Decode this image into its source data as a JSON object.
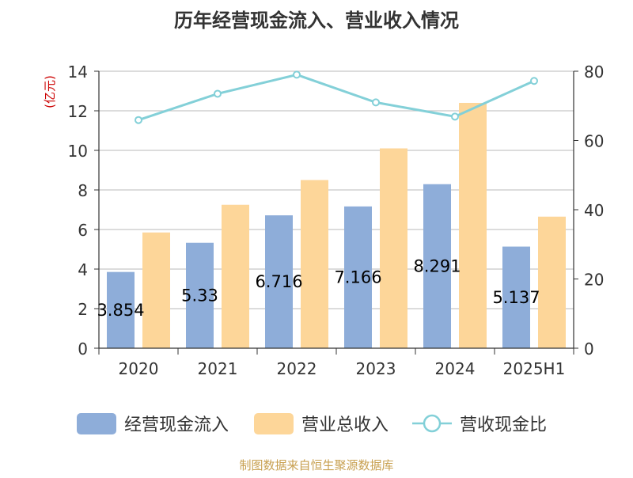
{
  "chart_data": {
    "type": "bar",
    "title": "历年经营现金流入、营业收入情况",
    "ylabel_left": "(亿元)",
    "ylabel_right": "%",
    "categories": [
      "2020",
      "2021",
      "2022",
      "2023",
      "2024",
      "2025H1"
    ],
    "ylim_left": [
      0,
      14
    ],
    "yticks_left": [
      0,
      2,
      4,
      6,
      8,
      10,
      12,
      14
    ],
    "ylim_right": [
      0,
      80
    ],
    "yticks_right": [
      0,
      20,
      40,
      60,
      80
    ],
    "grid": true,
    "legend_position": "bottom",
    "series": [
      {
        "name": "经营现金流入",
        "kind": "bar",
        "axis": "left",
        "color": "#8eadd9",
        "values": [
          3.854,
          5.33,
          6.716,
          7.166,
          8.291,
          5.137
        ],
        "labels": [
          "3.854",
          "5.33",
          "6.716",
          "7.166",
          "8.291",
          "5.137"
        ]
      },
      {
        "name": "营业总收入",
        "kind": "bar",
        "axis": "left",
        "color": "#fdd699",
        "values": [
          5.85,
          7.25,
          8.5,
          10.1,
          12.4,
          6.65
        ]
      },
      {
        "name": "营收现金比",
        "kind": "line",
        "axis": "right",
        "color": "#83d0d8",
        "values": [
          65.9,
          73.5,
          79.0,
          71.0,
          66.9,
          77.2
        ]
      }
    ],
    "source": "制图数据来自恒生聚源数据库"
  }
}
